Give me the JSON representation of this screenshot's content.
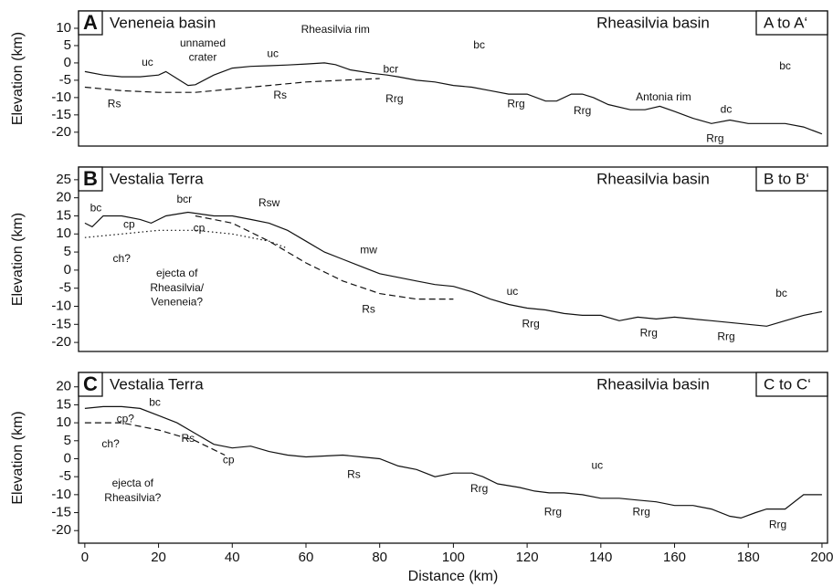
{
  "chart_data": [
    {
      "type": "line",
      "panel": "A",
      "left_label": "Veneneia basin",
      "right_label": "Rheasilvia basin",
      "profile_label": "A to A‘",
      "y_label": "Elevation (km)",
      "xlim": [
        -1.7,
        201.5
      ],
      "ylim": [
        -24,
        15
      ],
      "yticks": [
        10,
        5,
        0,
        -5,
        -10,
        -15,
        -20
      ],
      "series": [
        {
          "color": "#111111",
          "style": "solid",
          "x": [
            0,
            5,
            10,
            15,
            20,
            22,
            25,
            28,
            30,
            35,
            40,
            45,
            50,
            55,
            60,
            65,
            68,
            72,
            78,
            82,
            85,
            90,
            95,
            100,
            105,
            110,
            115,
            120,
            125,
            128,
            132,
            135,
            138,
            142,
            148,
            152,
            156,
            160,
            165,
            170,
            175,
            180,
            185,
            190,
            195,
            200
          ],
          "values": [
            -2.5,
            -3.5,
            -4,
            -4,
            -3.5,
            -2.5,
            -4.5,
            -6.5,
            -6.3,
            -3.5,
            -1.5,
            -1,
            -0.8,
            -0.6,
            -0.3,
            0,
            -0.5,
            -2,
            -3,
            -3.5,
            -4,
            -5,
            -5.5,
            -6.5,
            -7,
            -8,
            -9,
            -9,
            -11,
            -11,
            -9,
            -9,
            -10,
            -12,
            -13.5,
            -13.5,
            -12.5,
            -14,
            -16,
            -17.5,
            -16.5,
            -17.5,
            -17.5,
            -17.5,
            -18.5,
            -20.5
          ]
        },
        {
          "color": "#111111",
          "style": "dashed",
          "x": [
            0,
            10,
            20,
            30,
            40,
            50,
            60,
            70,
            80
          ],
          "values": [
            -7,
            -8,
            -8.5,
            -8.5,
            -7.5,
            -6.5,
            -5.5,
            -5,
            -4.5
          ]
        }
      ],
      "annotations": [
        {
          "text": "uc",
          "x": 17,
          "y": 0
        },
        {
          "text": "unnamed",
          "x": 32,
          "y": 5.5
        },
        {
          "text": "crater",
          "x": 32,
          "y": 1.5
        },
        {
          "text": "uc",
          "x": 51,
          "y": 2.5
        },
        {
          "text": "Rheasilvia rim",
          "x": 68,
          "y": 9.5
        },
        {
          "text": "Rs",
          "x": 8,
          "y": -12
        },
        {
          "text": "Rs",
          "x": 53,
          "y": -9.5
        },
        {
          "text": "bcr",
          "x": 83,
          "y": -2
        },
        {
          "text": "bc",
          "x": 107,
          "y": 5
        },
        {
          "text": "Rrg",
          "x": 84,
          "y": -10.5
        },
        {
          "text": "Rrg",
          "x": 117,
          "y": -12
        },
        {
          "text": "Rrg",
          "x": 135,
          "y": -14
        },
        {
          "text": "Antonia rim",
          "x": 157,
          "y": -10
        },
        {
          "text": "dc",
          "x": 174,
          "y": -13.5
        },
        {
          "text": "bc",
          "x": 190,
          "y": -1
        },
        {
          "text": "Rrg",
          "x": 171,
          "y": -22
        }
      ]
    },
    {
      "type": "line",
      "panel": "B",
      "left_label": "Vestalia Terra",
      "right_label": "Rheasilvia basin",
      "profile_label": "B to B‘",
      "y_label": "Elevation (km)",
      "xlim": [
        -1.7,
        201.5
      ],
      "ylim": [
        -22.5,
        28.5
      ],
      "yticks": [
        25,
        20,
        15,
        10,
        5,
        0,
        -5,
        -10,
        -15,
        -20
      ],
      "series": [
        {
          "color": "#111111",
          "style": "solid",
          "x": [
            0,
            2,
            5,
            10,
            15,
            18,
            22,
            28,
            35,
            40,
            45,
            50,
            55,
            60,
            65,
            70,
            75,
            80,
            85,
            90,
            95,
            100,
            105,
            110,
            115,
            120,
            125,
            130,
            135,
            140,
            145,
            150,
            155,
            160,
            165,
            170,
            175,
            180,
            185,
            190,
            195,
            200
          ],
          "values": [
            13,
            12,
            15,
            15,
            14,
            13,
            15,
            16,
            15,
            15,
            14,
            13,
            11,
            8,
            5,
            3,
            1,
            -1,
            -2,
            -3,
            -4,
            -4.5,
            -6,
            -8,
            -9.5,
            -10.5,
            -11,
            -12,
            -12.5,
            -12.5,
            -14,
            -13,
            -13.5,
            -13,
            -13.5,
            -14,
            -14.5,
            -15,
            -15.5,
            -14,
            -12.5,
            -11.5
          ]
        },
        {
          "color": "#111111",
          "style": "dashed",
          "x": [
            30,
            40,
            50,
            60,
            70,
            80,
            90,
            100
          ],
          "values": [
            15,
            13,
            8,
            2,
            -3,
            -6.5,
            -8,
            -8
          ]
        },
        {
          "color": "#111111",
          "style": "dotted",
          "x": [
            0,
            10,
            20,
            30,
            40,
            50,
            55
          ],
          "values": [
            9,
            10,
            11,
            11,
            10,
            8,
            6
          ]
        }
      ],
      "annotations": [
        {
          "text": "bc",
          "x": 3,
          "y": 17
        },
        {
          "text": "cp",
          "x": 12,
          "y": 12.5
        },
        {
          "text": "bcr",
          "x": 27,
          "y": 19.5
        },
        {
          "text": "cp",
          "x": 31,
          "y": 11.5
        },
        {
          "text": "Rsw",
          "x": 50,
          "y": 18.5
        },
        {
          "text": "ch?",
          "x": 10,
          "y": 3
        },
        {
          "text": "ejecta of",
          "x": 25,
          "y": -1
        },
        {
          "text": "Rheasilvia/",
          "x": 25,
          "y": -5
        },
        {
          "text": "Veneneia?",
          "x": 25,
          "y": -9
        },
        {
          "text": "mw",
          "x": 77,
          "y": 5.5
        },
        {
          "text": "Rs",
          "x": 77,
          "y": -11
        },
        {
          "text": "uc",
          "x": 116,
          "y": -6
        },
        {
          "text": "Rrg",
          "x": 121,
          "y": -15
        },
        {
          "text": "Rrg",
          "x": 153,
          "y": -17.5
        },
        {
          "text": "Rrg",
          "x": 174,
          "y": -18.5
        },
        {
          "text": "bc",
          "x": 189,
          "y": -6.5
        }
      ]
    },
    {
      "type": "line",
      "panel": "C",
      "left_label": "Vestalia Terra",
      "right_label": "Rheasilvia basin",
      "profile_label": "C to C‘",
      "y_label": "Elevation (km)",
      "x_label": "Distance (km)",
      "xlim": [
        -1.7,
        201.5
      ],
      "ylim": [
        -23.5,
        24
      ],
      "xticks": [
        0,
        20,
        40,
        60,
        80,
        100,
        120,
        140,
        160,
        180,
        200
      ],
      "yticks": [
        20,
        15,
        10,
        5,
        0,
        -5,
        -10,
        -15,
        -20
      ],
      "series": [
        {
          "color": "#111111",
          "style": "solid",
          "x": [
            0,
            5,
            10,
            15,
            20,
            25,
            30,
            35,
            40,
            45,
            50,
            55,
            60,
            70,
            75,
            80,
            85,
            90,
            95,
            100,
            105,
            108,
            112,
            118,
            122,
            126,
            130,
            135,
            140,
            145,
            150,
            155,
            160,
            165,
            170,
            175,
            178,
            182,
            185,
            190,
            195,
            200
          ],
          "values": [
            14,
            14.5,
            14.5,
            14,
            12,
            10,
            7,
            4,
            3,
            3.5,
            2,
            1,
            0.5,
            1,
            0.5,
            0,
            -2,
            -3,
            -5,
            -4,
            -4,
            -5,
            -7,
            -8,
            -9,
            -9.5,
            -9.5,
            -10,
            -11,
            -11,
            -11.5,
            -12,
            -13,
            -13,
            -14,
            -16,
            -16.5,
            -15,
            -14,
            -14,
            -10,
            -10
          ]
        },
        {
          "color": "#111111",
          "style": "dashed",
          "x": [
            0,
            10,
            20,
            30,
            38
          ],
          "values": [
            10,
            10,
            8,
            5,
            1
          ]
        }
      ],
      "annotations": [
        {
          "text": "bc",
          "x": 19,
          "y": 15.5
        },
        {
          "text": "cp?",
          "x": 11,
          "y": 11
        },
        {
          "text": "Rs",
          "x": 28,
          "y": 5.5
        },
        {
          "text": "ch?",
          "x": 7,
          "y": 4
        },
        {
          "text": "ejecta of",
          "x": 13,
          "y": -7
        },
        {
          "text": "Rheasilvia?",
          "x": 13,
          "y": -11
        },
        {
          "text": "cp",
          "x": 39,
          "y": -0.5
        },
        {
          "text": "Rs",
          "x": 73,
          "y": -4.5
        },
        {
          "text": "Rrg",
          "x": 107,
          "y": -8.5
        },
        {
          "text": "Rrg",
          "x": 127,
          "y": -15
        },
        {
          "text": "uc",
          "x": 139,
          "y": -2
        },
        {
          "text": "Rrg",
          "x": 151,
          "y": -15
        },
        {
          "text": "Rrg",
          "x": 188,
          "y": -18.5
        }
      ]
    }
  ]
}
